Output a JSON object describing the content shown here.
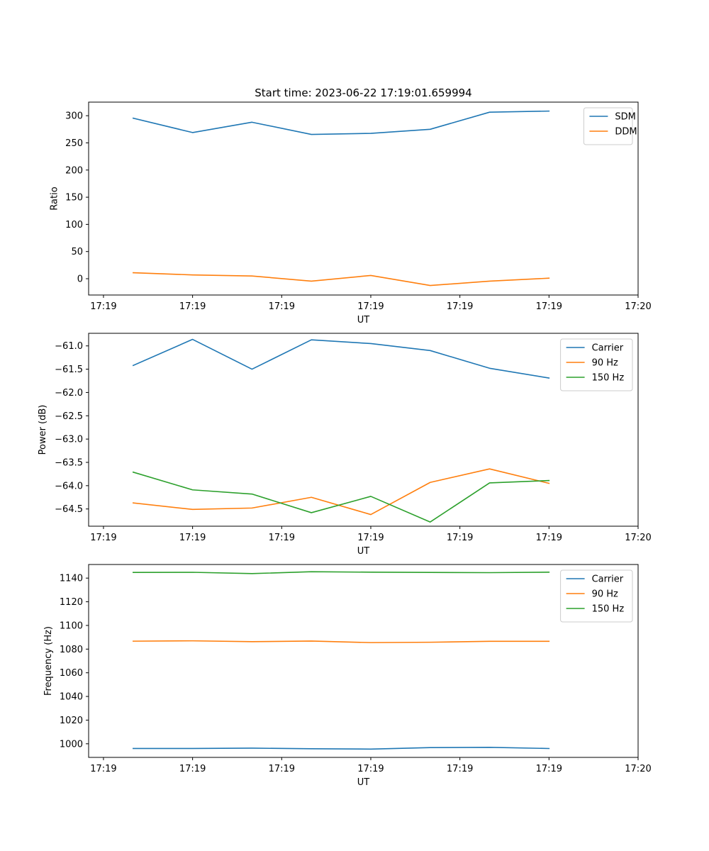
{
  "colors": {
    "blue": "#1f77b4",
    "orange": "#ff7f0e",
    "green": "#2ca02c"
  },
  "chart_data": [
    {
      "type": "line",
      "title": "Start time: 2023-06-22 17:19:01.659994",
      "xlabel": "UT",
      "ylabel": "Ratio",
      "x": [
        1,
        2,
        3,
        4,
        5,
        6,
        7,
        8
      ],
      "xlim": [
        0.25,
        9.5
      ],
      "xticks": [
        0.5,
        2,
        3.5,
        5,
        6.5,
        8,
        9.5
      ],
      "xtick_labels": [
        "17:19",
        "17:19",
        "17:19",
        "17:19",
        "17:19",
        "17:19",
        "17:20"
      ],
      "ylim": [
        -30,
        325
      ],
      "yticks": [
        0,
        50,
        100,
        150,
        200,
        250,
        300
      ],
      "ytick_labels": [
        "0",
        "50",
        "100",
        "150",
        "200",
        "250",
        "300"
      ],
      "legend": "top-right",
      "series": [
        {
          "name": "SDM",
          "color": "#1f77b4",
          "values": [
            295.5,
            269,
            288,
            265.5,
            267.5,
            275,
            306.5,
            308.5
          ]
        },
        {
          "name": "DDM",
          "color": "#ff7f0e",
          "values": [
            11,
            7,
            5,
            -4.5,
            6,
            -12.5,
            -4.5,
            1
          ]
        }
      ]
    },
    {
      "type": "line",
      "title": "",
      "xlabel": "UT",
      "ylabel": "Power (dB)",
      "x": [
        1,
        2,
        3,
        4,
        5,
        6,
        7,
        8
      ],
      "xlim": [
        0.25,
        9.5
      ],
      "xticks": [
        0.5,
        2,
        3.5,
        5,
        6.5,
        8,
        9.5
      ],
      "xtick_labels": [
        "17:19",
        "17:19",
        "17:19",
        "17:19",
        "17:19",
        "17:19",
        "17:20"
      ],
      "ylim": [
        -64.87,
        -60.73
      ],
      "yticks": [
        -61.0,
        -61.5,
        -62.0,
        -62.5,
        -63.0,
        -63.5,
        -64.0,
        -64.5
      ],
      "ytick_labels": [
        "−61.0",
        "−61.5",
        "−62.0",
        "−62.5",
        "−63.0",
        "−63.5",
        "−64.0",
        "−64.5"
      ],
      "legend": "top-right",
      "series": [
        {
          "name": "Carrier",
          "color": "#1f77b4",
          "values": [
            -61.42,
            -60.86,
            -61.5,
            -60.87,
            -60.95,
            -61.1,
            -61.48,
            -61.69
          ]
        },
        {
          "name": "90 Hz",
          "color": "#ff7f0e",
          "values": [
            -64.37,
            -64.51,
            -64.48,
            -64.25,
            -64.62,
            -63.93,
            -63.64,
            -63.95
          ]
        },
        {
          "name": "150 Hz",
          "color": "#2ca02c",
          "values": [
            -63.71,
            -64.09,
            -64.18,
            -64.58,
            -64.23,
            -64.78,
            -63.94,
            -63.89
          ]
        }
      ]
    },
    {
      "type": "line",
      "title": "",
      "xlabel": "UT",
      "ylabel": "Frequency (Hz)",
      "x": [
        1,
        2,
        3,
        4,
        5,
        6,
        7,
        8
      ],
      "xlim": [
        0.25,
        9.5
      ],
      "xticks": [
        0.5,
        2,
        3.5,
        5,
        6.5,
        8,
        9.5
      ],
      "xtick_labels": [
        "17:19",
        "17:19",
        "17:19",
        "17:19",
        "17:19",
        "17:19",
        "17:20"
      ],
      "ylim": [
        988.5,
        1151.5
      ],
      "yticks": [
        1000,
        1020,
        1040,
        1060,
        1080,
        1100,
        1120,
        1140
      ],
      "ytick_labels": [
        "1000",
        "1020",
        "1040",
        "1060",
        "1080",
        "1100",
        "1120",
        "1140"
      ],
      "legend": "top-right",
      "series": [
        {
          "name": "Carrier",
          "color": "#1f77b4",
          "values": [
            996,
            996,
            996.3,
            995.8,
            995.5,
            996.8,
            997,
            996
          ]
        },
        {
          "name": "90 Hz",
          "color": "#ff7f0e",
          "values": [
            1086.7,
            1087,
            1086.3,
            1086.8,
            1085.5,
            1085.8,
            1086.6,
            1086.6
          ]
        },
        {
          "name": "150 Hz",
          "color": "#2ca02c",
          "values": [
            1144.8,
            1144.9,
            1143.8,
            1145.4,
            1145,
            1144.8,
            1144.6,
            1145
          ]
        }
      ]
    }
  ]
}
